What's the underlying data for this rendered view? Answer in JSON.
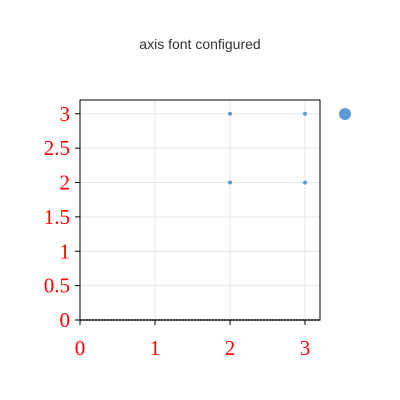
{
  "chart_data": {
    "type": "scatter",
    "title": "axis font configured",
    "xlabel": "",
    "ylabel": "",
    "x_ticks": [
      0,
      1,
      2,
      3
    ],
    "y_ticks": [
      0,
      0.5,
      1,
      1.5,
      2,
      2.5,
      3
    ],
    "xlim": [
      0,
      3.2
    ],
    "ylim": [
      0,
      3.2
    ],
    "grid": true,
    "legend_placement": "right",
    "tick_label_color": "#ff0000",
    "series": [
      {
        "color": "#5b9bd5",
        "points": [
          {
            "x": 2,
            "y": 2
          },
          {
            "x": 2,
            "y": 3
          },
          {
            "x": 3,
            "y": 2
          },
          {
            "x": 3,
            "y": 3
          }
        ]
      }
    ]
  }
}
